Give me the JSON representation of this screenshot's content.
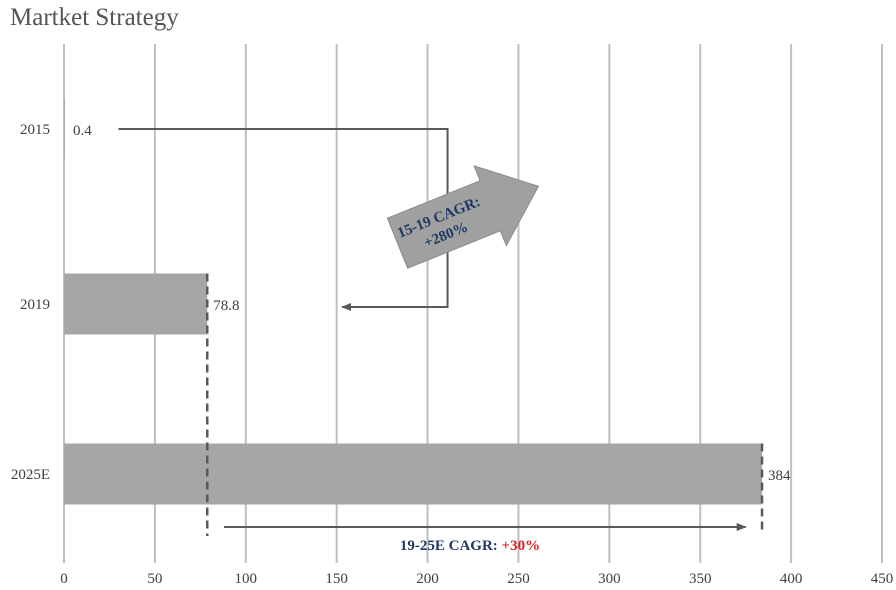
{
  "chart_data": {
    "type": "bar",
    "orientation": "horizontal",
    "title": "Martket Strategy",
    "categories": [
      "2015",
      "2019",
      "2025E"
    ],
    "values": [
      0.4,
      78.8,
      384
    ],
    "data_labels": [
      "0.4",
      "78.8",
      "384"
    ],
    "xlim": [
      0,
      450
    ],
    "xticks": [
      0,
      50,
      100,
      150,
      200,
      250,
      300,
      350,
      400,
      450
    ],
    "grid": "vertical",
    "legend": "none",
    "annotations": [
      {
        "text_line1": "15-19 CAGR:",
        "text_line2": "+280%"
      },
      {
        "text": "19-25E CAGR: ",
        "highlight": "+30%"
      }
    ]
  },
  "colors": {
    "bar": "#a6a6a6",
    "grid": "#bfbfbf",
    "text": "#404040",
    "title": "#555555",
    "arrow": "#595959",
    "annotation_text": "#1f3864",
    "highlight": "#e02020"
  }
}
